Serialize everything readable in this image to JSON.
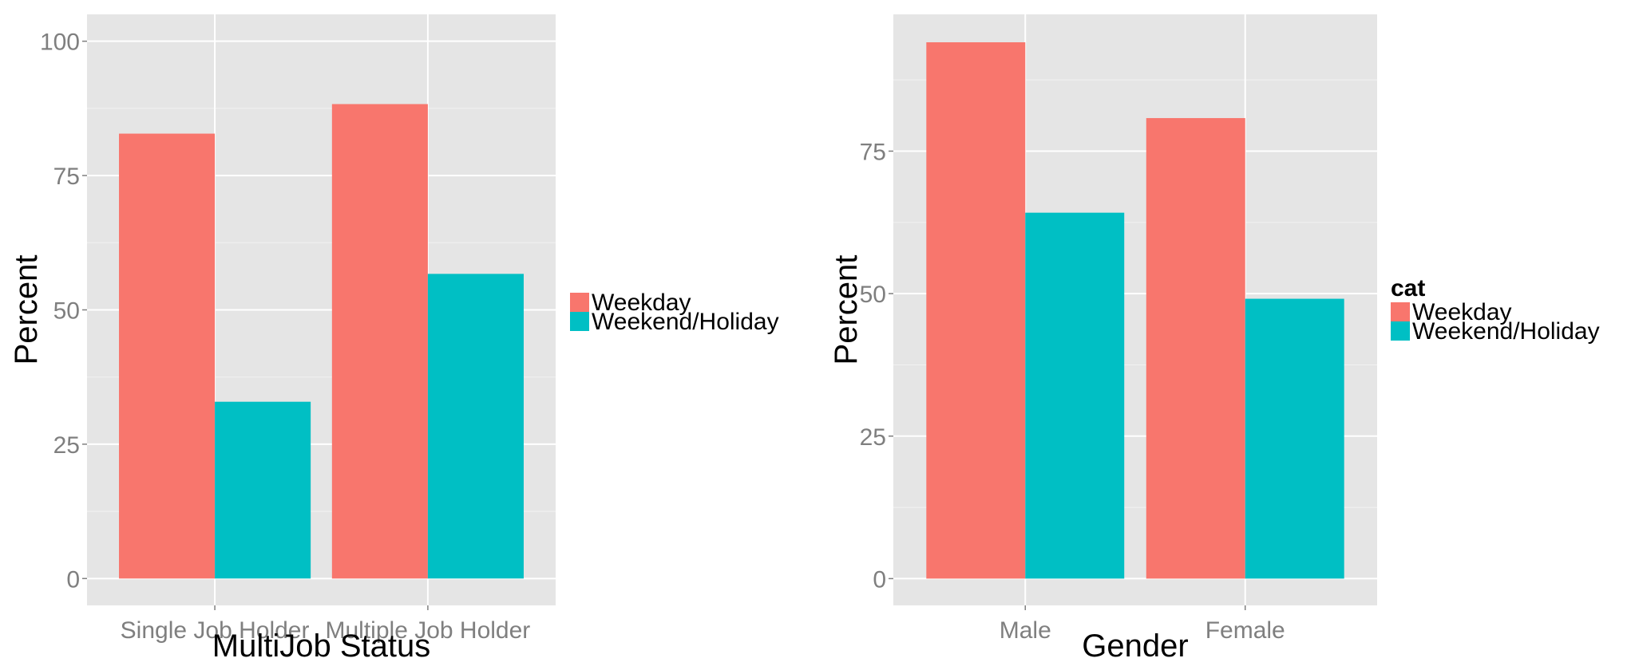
{
  "chart_data": [
    {
      "type": "bar",
      "title": "",
      "xlabel": "MultiJob Status",
      "ylabel": "Percent",
      "categories": [
        "Single Job Holder",
        "Multiple Job Holder"
      ],
      "series": [
        {
          "name": "Weekday",
          "color": "#F8766D",
          "values": [
            82.8,
            88.3
          ]
        },
        {
          "name": "Weekend/Holiday",
          "color": "#00BFC4",
          "values": [
            32.9,
            56.7
          ]
        }
      ],
      "ylim": [
        -5,
        105
      ],
      "yticks": [
        0,
        25,
        50,
        75,
        100
      ],
      "grid": true,
      "legend_title": "",
      "legend_position": "right"
    },
    {
      "type": "bar",
      "title": "",
      "xlabel": "Gender",
      "ylabel": "Percent",
      "categories": [
        "Male",
        "Female"
      ],
      "series": [
        {
          "name": "Weekday",
          "color": "#F8766D",
          "values": [
            94.1,
            80.8
          ]
        },
        {
          "name": "Weekend/Holiday",
          "color": "#00BFC4",
          "values": [
            64.2,
            49.1
          ]
        }
      ],
      "ylim": [
        -4.7,
        99
      ],
      "yticks": [
        0,
        25,
        50,
        75
      ],
      "grid": true,
      "legend_title": "cat",
      "legend_position": "right"
    }
  ]
}
